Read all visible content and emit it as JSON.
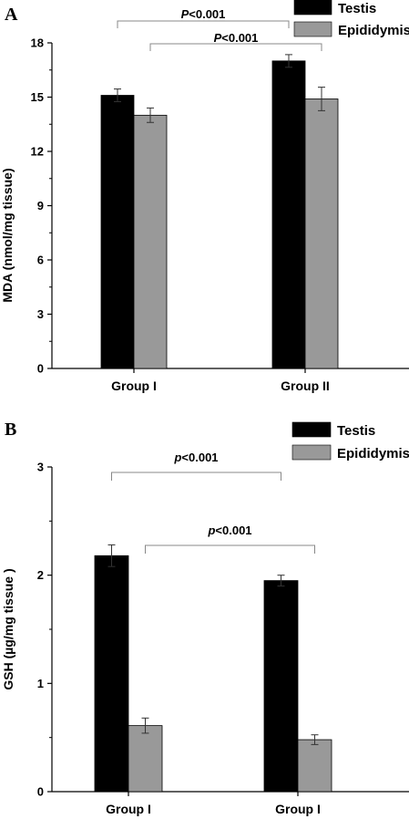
{
  "chart_data": [
    {
      "type": "bar",
      "panel_label": "A",
      "ylabel": "MDA (nmol/mg tissue)",
      "categories": [
        "Group I",
        "Group II"
      ],
      "ylim": [
        0,
        18
      ],
      "yticks": [
        "0",
        "3",
        "6",
        "9",
        "12",
        "15",
        "18"
      ],
      "series": [
        {
          "name": "Testis",
          "color": "#000000",
          "values": [
            15.1,
            17.0
          ],
          "errors": [
            0.35,
            0.35
          ]
        },
        {
          "name": "Epididymis",
          "color": "#999999",
          "values": [
            14.0,
            14.9
          ],
          "errors": [
            0.4,
            0.65
          ]
        }
      ],
      "legend_position": "top-right",
      "annotations": [
        {
          "p": "P",
          "text": "<0.001",
          "from": [
            0,
            0
          ],
          "to": [
            1,
            0
          ]
        },
        {
          "p": "P",
          "text": "<0.001",
          "from": [
            0,
            1
          ],
          "to": [
            1,
            1
          ]
        }
      ],
      "grid": false
    },
    {
      "type": "bar",
      "panel_label": "B",
      "ylabel": "GSH  (µg/mg tissue  )",
      "categories": [
        "Group I",
        "Group I"
      ],
      "ylim": [
        0,
        3
      ],
      "yticks": [
        "0",
        "1",
        "2",
        "3"
      ],
      "series": [
        {
          "name": "Testis",
          "color": "#000000",
          "values": [
            2.18,
            1.95
          ],
          "errors": [
            0.1,
            0.05
          ]
        },
        {
          "name": "Epididymis",
          "color": "#999999",
          "values": [
            0.61,
            0.48
          ],
          "errors": [
            0.07,
            0.045
          ]
        }
      ],
      "legend_position": "top-right",
      "annotations": [
        {
          "p": "p",
          "text": "<0.001",
          "from": [
            0,
            0
          ],
          "to": [
            1,
            0
          ]
        },
        {
          "p": "p",
          "text": "<0.001",
          "from": [
            0,
            1
          ],
          "to": [
            1,
            1
          ]
        }
      ],
      "grid": false
    }
  ]
}
